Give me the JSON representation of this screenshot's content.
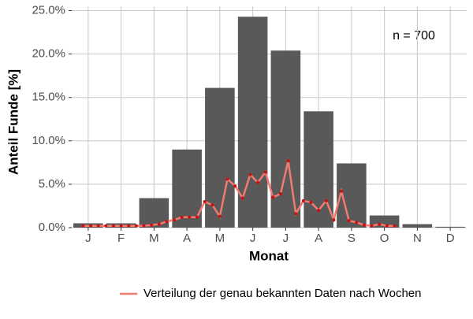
{
  "chart_data": {
    "type": "bar",
    "x_label": "Monat",
    "y_label": "Anteil Funde [%]",
    "annotation": "n = 700",
    "categories": [
      "J",
      "F",
      "M",
      "A",
      "M",
      "J",
      "J",
      "A",
      "S",
      "O",
      "N",
      "D"
    ],
    "values": [
      0.5,
      0.5,
      3.4,
      9.0,
      16.1,
      24.3,
      20.4,
      13.4,
      7.4,
      1.4,
      0.4,
      0.1
    ],
    "color": "#595959",
    "ylim": [
      0,
      25.5
    ],
    "yticks": [
      {
        "value": 0,
        "label": "0.0%"
      },
      {
        "value": 5,
        "label": "5.0%"
      },
      {
        "value": 10,
        "label": "10.0%"
      },
      {
        "value": 15,
        "label": "15.0%"
      },
      {
        "value": 20,
        "label": "20.0%"
      },
      {
        "value": 25,
        "label": "25.0%"
      }
    ],
    "grid": true,
    "legend": "bottom",
    "line": {
      "name": "Verteilung der genau bekannten Daten nach Wochen",
      "color": "#f07b72",
      "marker_color": "#cc1010",
      "values": [
        0.2,
        0.2,
        0.2,
        0.2,
        0.2,
        0.2,
        0.2,
        0.2,
        0.2,
        0.3,
        0.4,
        0.7,
        0.9,
        1.2,
        1.2,
        1.2,
        3.0,
        2.6,
        1.3,
        5.6,
        4.8,
        3.4,
        6.1,
        5.2,
        6.4,
        3.5,
        3.9,
        7.7,
        1.6,
        3.1,
        2.9,
        2.0,
        3.1,
        0.9,
        4.2,
        0.8,
        0.6,
        0.3,
        0.2,
        0.4,
        0.2,
        0.2
      ]
    }
  }
}
